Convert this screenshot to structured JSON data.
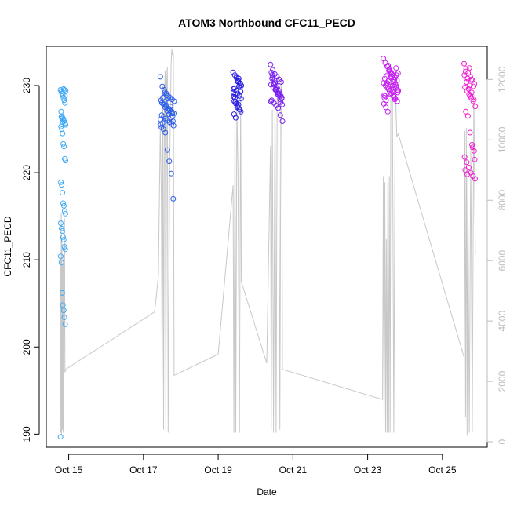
{
  "chart_data": {
    "type": "scatter",
    "title": "ATOM3 Northbound CFC11_PECD",
    "xlabel": "Date",
    "ylabel": "CFC11_PECD",
    "x_ticks": [
      "Oct 15",
      "Oct 17",
      "Oct 19",
      "Oct 21",
      "Oct 23",
      "Oct 25"
    ],
    "x_tick_days": [
      15,
      17,
      19,
      21,
      23,
      25
    ],
    "xlim_days": [
      14.4,
      26.2
    ],
    "ylim": [
      188.5,
      234.5
    ],
    "y_ticks": [
      190,
      200,
      210,
      220,
      230
    ],
    "y2_ticks": [
      0,
      2000,
      4000,
      6000,
      8000,
      10000,
      12000
    ],
    "y2lim": [
      -180,
      13100
    ],
    "colors": {
      "altitude_line": "#c8c8c8",
      "right_axis": "#bdbdbd",
      "flights": [
        "#3fa9f5",
        "#2f5fe8",
        "#2a1fe0",
        "#7a1ff0",
        "#c61ff0",
        "#ef1fd0"
      ]
    },
    "series": [
      {
        "x_day_range": [
          14.78,
          14.92
        ],
        "values": [
          229.5,
          229.3,
          229.1,
          228.9,
          228.6,
          228.3,
          228.0,
          229.4,
          227.0,
          226.5,
          226.3,
          226.1,
          225.9,
          225.7,
          225.5,
          225.3,
          225.0,
          224.5,
          223.3,
          223.0,
          221.6,
          221.4,
          218.9,
          218.6,
          217.7,
          216.5,
          216.2,
          215.6,
          215.3,
          214.2,
          213.6,
          213.3,
          212.6,
          212.3,
          211.5,
          211.2,
          210.4,
          209.7,
          206.2,
          204.8,
          204.2,
          203.4,
          202.6,
          189.7,
          226.4,
          226.2,
          225.8,
          229.6,
          229.5,
          228.8
        ]
      },
      {
        "x_day_range": [
          17.45,
          17.82
        ],
        "values": [
          231.0,
          229.9,
          229.5,
          229.1,
          228.8,
          228.6,
          228.4,
          228.2,
          228.0,
          227.8,
          227.6,
          227.4,
          227.2,
          227.0,
          226.8,
          226.6,
          226.4,
          226.2,
          226.0,
          225.8,
          225.6,
          225.4,
          225.2,
          225.0,
          224.6,
          222.6,
          221.3,
          219.9,
          217.0,
          228.3,
          227.9,
          227.5,
          227.1,
          226.7,
          226.3,
          225.9,
          225.5,
          228.6,
          228.1,
          227.7,
          227.3,
          226.9,
          226.5,
          226.1,
          225.7,
          229.2,
          228.9,
          228.5,
          227.6,
          226.8
        ]
      },
      {
        "x_day_range": [
          19.4,
          19.62
        ],
        "values": [
          231.5,
          231.2,
          230.9,
          230.6,
          230.3,
          230.0,
          229.7,
          229.4,
          229.1,
          228.8,
          228.5,
          228.2,
          227.9,
          227.6,
          227.3,
          227.0,
          226.7,
          226.3,
          230.5,
          229.9,
          229.3,
          228.7,
          228.1,
          227.5,
          230.8,
          230.2,
          229.6,
          229.0,
          228.4,
          227.8,
          229.8,
          229.2,
          228.6,
          231.0,
          230.4,
          227.2
        ]
      },
      {
        "x_day_range": [
          20.4,
          20.72
        ],
        "values": [
          232.4,
          231.8,
          231.3,
          231.0,
          230.7,
          230.4,
          230.1,
          229.8,
          229.5,
          229.2,
          228.9,
          228.6,
          228.3,
          228.0,
          227.7,
          227.4,
          226.6,
          225.9,
          231.2,
          230.6,
          230.0,
          229.4,
          228.8,
          228.2,
          230.9,
          230.3,
          229.7,
          229.1,
          228.5,
          231.5,
          230.2,
          229.6,
          229.0,
          228.4,
          227.8,
          230.8,
          230.1,
          229.5,
          228.9,
          228.1
        ]
      },
      {
        "x_day_range": [
          23.42,
          23.82
        ],
        "values": [
          233.1,
          232.6,
          232.2,
          231.8,
          231.5,
          231.2,
          230.9,
          230.6,
          230.3,
          230.0,
          229.7,
          229.4,
          229.1,
          228.8,
          228.5,
          228.2,
          227.9,
          227.5,
          227.0,
          231.9,
          231.3,
          230.7,
          230.1,
          229.5,
          228.9,
          228.3,
          232.3,
          231.6,
          231.0,
          230.4,
          229.8,
          229.2,
          228.6,
          231.1,
          230.5,
          229.9,
          229.3,
          228.7,
          232.0,
          231.4,
          230.8,
          230.2,
          229.6,
          229.0,
          230.0,
          230.6,
          231.2,
          229.4,
          228.8,
          230.3,
          231.7,
          230.9,
          229.7,
          228.4,
          229.9
        ]
      },
      {
        "x_day_range": [
          25.58,
          25.88
        ],
        "values": [
          232.5,
          231.9,
          231.4,
          231.0,
          230.6,
          230.2,
          229.8,
          229.4,
          229.0,
          228.6,
          228.2,
          227.6,
          227.0,
          226.5,
          224.6,
          223.2,
          222.5,
          221.8,
          221.2,
          220.6,
          220.0,
          219.6,
          219.3,
          231.6,
          230.8,
          230.0,
          229.2,
          228.4,
          231.2,
          230.4,
          229.6,
          228.8,
          222.9,
          221.5,
          220.3,
          219.8,
          232.0,
          230.7,
          229.9
        ]
      }
    ],
    "altitude_series": {
      "axis": "right",
      "points": [
        [
          14.78,
          6100
        ],
        [
          14.79,
          300
        ],
        [
          14.8,
          7600
        ],
        [
          14.81,
          200
        ],
        [
          14.82,
          6600
        ],
        [
          14.83,
          400
        ],
        [
          14.84,
          5900
        ],
        [
          14.85,
          300
        ],
        [
          14.86,
          6200
        ],
        [
          14.87,
          500
        ],
        [
          14.88,
          6700
        ],
        [
          14.89,
          7400
        ],
        [
          14.9,
          2300
        ],
        [
          14.92,
          2400
        ],
        [
          17.3,
          4300
        ],
        [
          17.4,
          5500
        ],
        [
          17.45,
          10400
        ],
        [
          17.46,
          9800
        ],
        [
          17.48,
          8000
        ],
        [
          17.5,
          2000
        ],
        [
          17.52,
          11800
        ],
        [
          17.54,
          400
        ],
        [
          17.56,
          11200
        ],
        [
          17.58,
          12300
        ],
        [
          17.6,
          300
        ],
        [
          17.62,
          11900
        ],
        [
          17.64,
          12400
        ],
        [
          17.66,
          300
        ],
        [
          17.7,
          9000
        ],
        [
          17.74,
          12500
        ],
        [
          17.76,
          13000
        ],
        [
          17.78,
          12800
        ],
        [
          17.8,
          12900
        ],
        [
          17.82,
          2200
        ],
        [
          19.0,
          2900
        ],
        [
          19.4,
          8500
        ],
        [
          19.42,
          300
        ],
        [
          19.45,
          10900
        ],
        [
          19.47,
          300
        ],
        [
          19.5,
          11200
        ],
        [
          19.53,
          9000
        ],
        [
          19.57,
          300
        ],
        [
          19.6,
          11500
        ],
        [
          19.62,
          5300
        ],
        [
          20.3,
          2600
        ],
        [
          20.4,
          9800
        ],
        [
          20.42,
          400
        ],
        [
          20.45,
          11000
        ],
        [
          20.48,
          300
        ],
        [
          20.52,
          11400
        ],
        [
          20.55,
          300
        ],
        [
          20.58,
          11800
        ],
        [
          20.62,
          12200
        ],
        [
          20.65,
          400
        ],
        [
          20.68,
          12000
        ],
        [
          20.7,
          11900
        ],
        [
          20.72,
          2400
        ],
        [
          23.4,
          1400
        ],
        [
          23.42,
          8800
        ],
        [
          23.44,
          300
        ],
        [
          23.46,
          8600
        ],
        [
          23.48,
          300
        ],
        [
          23.5,
          6700
        ],
        [
          23.52,
          300
        ],
        [
          23.54,
          8600
        ],
        [
          23.56,
          300
        ],
        [
          23.58,
          8800
        ],
        [
          23.6,
          300
        ],
        [
          23.62,
          11800
        ],
        [
          23.66,
          12300
        ],
        [
          23.7,
          300
        ],
        [
          23.74,
          12000
        ],
        [
          23.78,
          10100
        ],
        [
          23.82,
          10200
        ],
        [
          25.58,
          2800
        ],
        [
          25.6,
          10300
        ],
        [
          25.62,
          800
        ],
        [
          25.64,
          10400
        ],
        [
          25.66,
          200
        ],
        [
          25.68,
          8900
        ],
        [
          25.72,
          300
        ],
        [
          25.76,
          9800
        ],
        [
          25.8,
          300
        ],
        [
          25.84,
          11500
        ],
        [
          25.88,
          6200
        ]
      ]
    }
  }
}
